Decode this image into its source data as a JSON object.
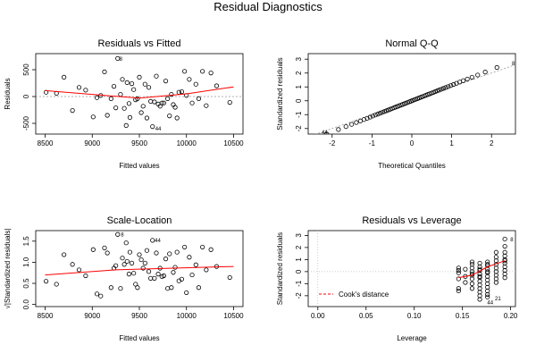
{
  "page": {
    "title": "Residual Diagnostics"
  },
  "colors": {
    "smoother": "#ff0000",
    "points": "#000000",
    "qqline": "#999999",
    "cook": "#ff0000"
  },
  "chart_data": [
    {
      "id": "resid_fitted",
      "type": "scatter",
      "title": "Residuals vs Fitted",
      "xlabel": "Fitted values",
      "ylabel": "Residuals",
      "xlim": [
        8400,
        10600
      ],
      "ylim": [
        -700,
        800
      ],
      "xticks": [
        8500,
        9000,
        9500,
        10000,
        10500
      ],
      "yticks": [
        -500,
        0,
        500
      ],
      "labels": [
        {
          "text": "8",
          "x": 9250,
          "y": 720
        },
        {
          "text": "44",
          "x": 9630,
          "y": -580
        }
      ],
      "x": [
        8510,
        8620,
        8700,
        8790,
        8860,
        8930,
        9010,
        9050,
        9090,
        9130,
        9160,
        9200,
        9230,
        9250,
        9270,
        9300,
        9320,
        9340,
        9360,
        9370,
        9390,
        9400,
        9420,
        9440,
        9460,
        9480,
        9500,
        9520,
        9540,
        9560,
        9580,
        9600,
        9620,
        9640,
        9660,
        9680,
        9700,
        9720,
        9740,
        9760,
        9780,
        9800,
        9820,
        9840,
        9860,
        9880,
        9900,
        9920,
        9950,
        9980,
        10000,
        10030,
        10060,
        10100,
        10130,
        10170,
        10210,
        10260,
        10320,
        10460
      ],
      "y": [
        80,
        60,
        360,
        -260,
        170,
        120,
        -380,
        -20,
        20,
        460,
        -350,
        -40,
        190,
        -210,
        710,
        40,
        320,
        -220,
        -540,
        260,
        -130,
        -390,
        240,
        130,
        -60,
        -40,
        360,
        -300,
        -180,
        230,
        -400,
        170,
        -90,
        -560,
        -100,
        380,
        -140,
        -180,
        -120,
        -120,
        290,
        -40,
        -360,
        40,
        -150,
        -200,
        -400,
        80,
        90,
        470,
        20,
        320,
        -120,
        230,
        -40,
        470,
        -170,
        440,
        200,
        -110
      ],
      "smooth": {
        "x": [
          8500,
          9000,
          9500,
          10000,
          10500
        ],
        "y": [
          110,
          40,
          -30,
          50,
          180
        ]
      }
    },
    {
      "id": "normal_qq",
      "type": "scatter",
      "title": "Normal Q-Q",
      "xlabel": "Theoretical Quantiles",
      "ylabel": "Standardized residuals",
      "xlim": [
        -2.6,
        2.6
      ],
      "ylim": [
        -2.4,
        3.4
      ],
      "xticks": [
        -2,
        -1,
        0,
        1,
        2
      ],
      "yticks": [
        -2,
        -1,
        0,
        1,
        2,
        3
      ],
      "labels": [
        {
          "text": "8",
          "x": 2.42,
          "y": 2.75
        },
        {
          "text": "44",
          "x": -2.35,
          "y": -2.2
        }
      ],
      "quantile_range": [
        -2.4,
        2.4
      ],
      "line": {
        "x": [
          -2.6,
          2.6
        ],
        "y": [
          -2.6,
          2.6
        ]
      }
    },
    {
      "id": "scale_location",
      "type": "scatter",
      "title": "Scale-Location",
      "xlabel": "Fitted values",
      "ylabel": "√|Standardized residuals|",
      "xlim": [
        8400,
        10600
      ],
      "ylim": [
        -0.05,
        1.75
      ],
      "xticks": [
        8500,
        9000,
        9500,
        10000,
        10500
      ],
      "yticks": [
        0.0,
        0.5,
        1.0,
        1.5
      ],
      "labels": [
        {
          "text": "8",
          "x": 9265,
          "y": 1.68
        },
        {
          "text": "44",
          "x": 9625,
          "y": 1.54
        }
      ],
      "x": [
        8510,
        8620,
        8700,
        8790,
        8860,
        8930,
        9010,
        9050,
        9090,
        9130,
        9160,
        9200,
        9230,
        9250,
        9270,
        9300,
        9320,
        9340,
        9360,
        9370,
        9390,
        9400,
        9420,
        9440,
        9460,
        9480,
        9500,
        9520,
        9540,
        9560,
        9580,
        9600,
        9620,
        9640,
        9660,
        9680,
        9700,
        9720,
        9740,
        9760,
        9780,
        9800,
        9820,
        9840,
        9860,
        9880,
        9900,
        9920,
        9950,
        9980,
        10000,
        10030,
        10060,
        10100,
        10130,
        10170,
        10210,
        10260,
        10320,
        10460
      ],
      "y": [
        0.55,
        0.48,
        1.18,
        0.95,
        0.82,
        0.68,
        1.3,
        0.25,
        0.2,
        1.34,
        1.22,
        0.4,
        0.86,
        0.92,
        1.66,
        0.38,
        1.1,
        0.95,
        1.46,
        1.02,
        0.72,
        1.24,
        0.98,
        0.74,
        0.48,
        0.4,
        1.18,
        1.06,
        0.86,
        0.98,
        1.28,
        0.78,
        0.62,
        1.52,
        0.62,
        1.22,
        0.72,
        0.86,
        0.66,
        0.68,
        1.08,
        0.38,
        1.2,
        0.4,
        0.76,
        0.88,
        1.24,
        0.56,
        0.6,
        1.36,
        0.28,
        1.12,
        0.7,
        0.94,
        0.4,
        1.36,
        0.82,
        1.3,
        0.9,
        0.64
      ],
      "smooth": {
        "x": [
          8500,
          9250,
          10500
        ],
        "y": [
          0.7,
          0.82,
          0.9
        ]
      }
    },
    {
      "id": "resid_leverage",
      "type": "scatter",
      "title": "Residuals vs Leverage",
      "xlabel": "Leverage",
      "ylabel": "Standardized residuals",
      "xlim": [
        -0.01,
        0.205
      ],
      "ylim": [
        -2.9,
        3.4
      ],
      "xticks": [
        0.0,
        0.05,
        0.1,
        0.15,
        0.2
      ],
      "yticks": [
        -2,
        -1,
        0,
        1,
        2,
        3
      ],
      "legend": {
        "text": "Cook's distance",
        "position": "bottom-left"
      },
      "labels": [
        {
          "text": "8",
          "x": 0.196,
          "y": 2.75
        },
        {
          "text": "21",
          "x": 0.18,
          "y": -2.15
        },
        {
          "text": "44",
          "x": 0.172,
          "y": -2.5
        }
      ],
      "leverage_groups": [
        {
          "x": 0.146,
          "y": [
            0.3,
            -0.1,
            -0.6,
            -1.4,
            -1.6,
            0.1
          ]
        },
        {
          "x": 0.153,
          "y": [
            0.2,
            -0.4,
            -0.9
          ]
        },
        {
          "x": 0.16,
          "y": [
            0.6,
            0.3,
            0.0,
            -0.3,
            -0.6,
            -1.0,
            -1.4,
            0.8,
            -0.2
          ]
        },
        {
          "x": 0.168,
          "y": [
            0.7,
            0.4,
            0.1,
            -0.2,
            -0.5,
            -0.8,
            -1.1,
            -1.4,
            -1.7,
            -2.0,
            -2.3,
            0.2,
            -0.4
          ]
        },
        {
          "x": 0.176,
          "y": [
            0.8,
            0.5,
            0.2,
            -0.1,
            -0.4,
            -0.7,
            -1.0,
            -1.3,
            -1.6,
            -1.9,
            -2.1,
            0.6,
            0.0
          ]
        },
        {
          "x": 0.185,
          "y": [
            1.2,
            0.9,
            0.6,
            0.3,
            0.0,
            -0.3,
            -0.6,
            -0.9,
            1.6
          ]
        },
        {
          "x": 0.194,
          "y": [
            2.7,
            2.1,
            1.6,
            1.3,
            1.0,
            0.7,
            0.4,
            0.1,
            -0.2,
            -0.5,
            0.9
          ]
        }
      ],
      "smooth": {
        "x": [
          0.146,
          0.16,
          0.176,
          0.194
        ],
        "y": [
          -0.5,
          -0.3,
          0.4,
          0.9
        ]
      }
    }
  ]
}
